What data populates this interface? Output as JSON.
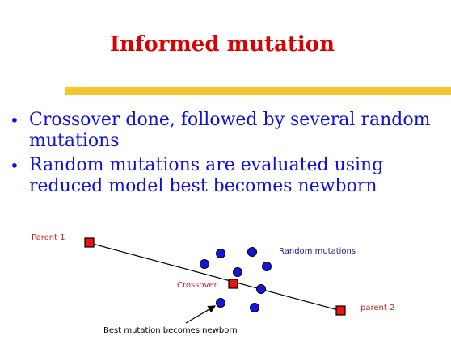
{
  "title": "Informed mutation",
  "bullets": [
    "Crossover done, followed by several random mutations",
    "Random mutations are evaluated using reduced model best  becomes newborn"
  ],
  "diagram": {
    "labels": {
      "parent1": "Parent 1",
      "parent2": "parent 2",
      "crossover": "Crossover",
      "random_mutations": "Random mutations",
      "best_mutation": "Best mutation becomes newborn"
    }
  },
  "colors": {
    "title": "#dd0000",
    "bullet_text": "#1010dd",
    "bar": "#f5c72c",
    "label_red": "#cc2222",
    "label_blue": "#1a1aa0",
    "square_fill": "#ee1111",
    "circle_fill": "#1616d8"
  }
}
